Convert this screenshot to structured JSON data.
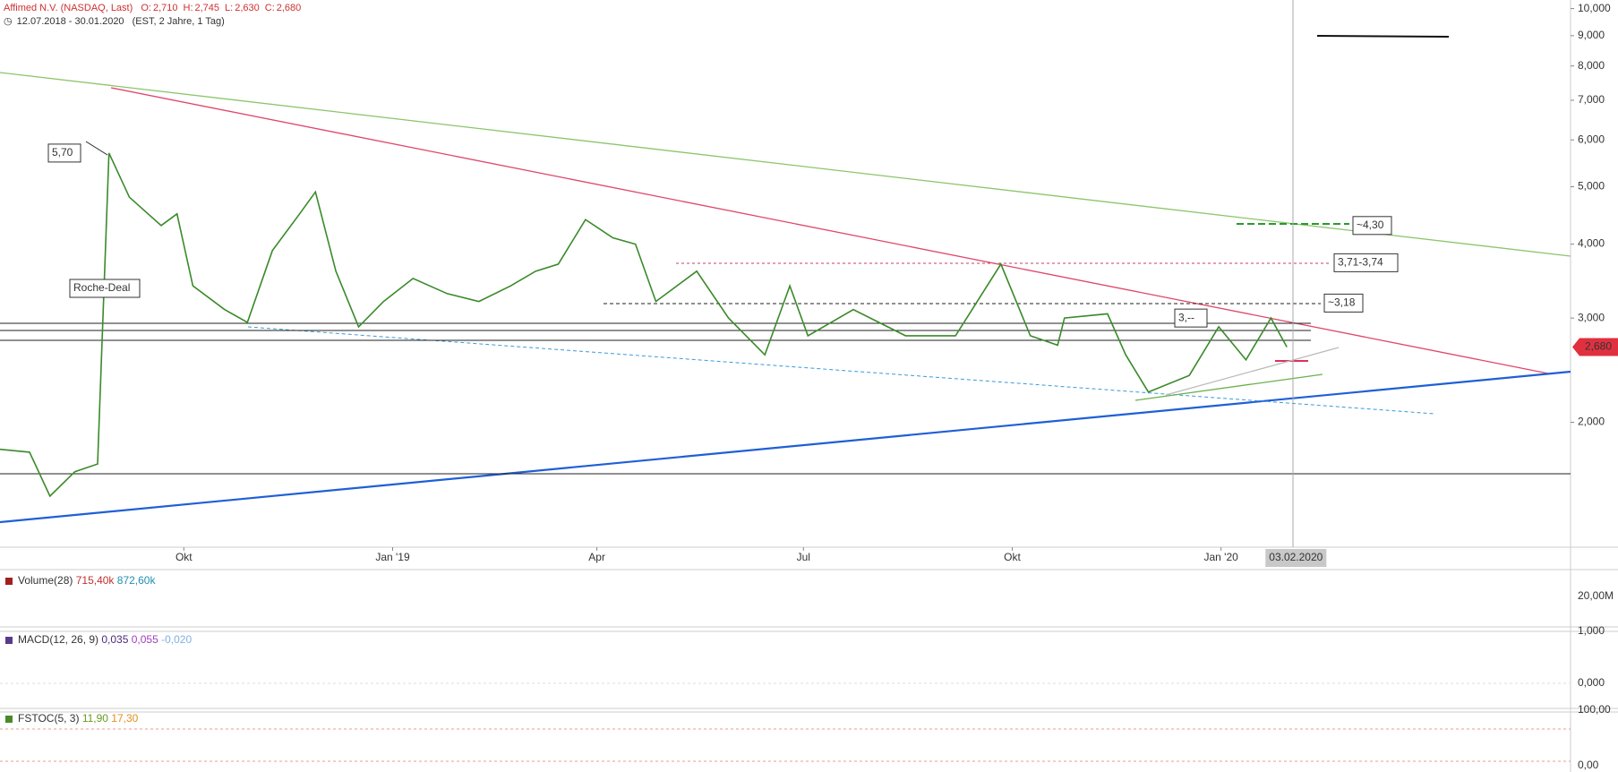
{
  "header": {
    "title": "Affimed N.V. (NASDAQ, Last)",
    "quote": [
      {
        "label": "O:",
        "value": "2,710"
      },
      {
        "label": "H:",
        "value": "2,745"
      },
      {
        "label": "L:",
        "value": "2,630"
      },
      {
        "label": "C:",
        "value": "2,680"
      }
    ],
    "range": "12.07.2018 - 30.01.2020",
    "settings": "(EST, 2 Jahre, 1 Tag)"
  },
  "chart_data": {
    "type": "line",
    "color": "#3a8a2a",
    "log_scale": true,
    "x": [
      "2018-07-12",
      "2018-07-25",
      "2018-08-03",
      "2018-08-14",
      "2018-08-24",
      "2018-08-29",
      "2018-09-07",
      "2018-09-21",
      "2018-09-28",
      "2018-10-05",
      "2018-10-19",
      "2018-10-29",
      "2018-11-09",
      "2018-11-21",
      "2018-11-28",
      "2018-12-07",
      "2018-12-17",
      "2018-12-28",
      "2019-01-10",
      "2019-01-25",
      "2019-02-08",
      "2019-02-22",
      "2019-03-05",
      "2019-03-15",
      "2019-03-27",
      "2019-04-08",
      "2019-04-18",
      "2019-04-27",
      "2019-05-15",
      "2019-05-29",
      "2019-06-14",
      "2019-06-25",
      "2019-07-03",
      "2019-07-23",
      "2019-08-15",
      "2019-09-06",
      "2019-09-26",
      "2019-10-09",
      "2019-10-21",
      "2019-10-24",
      "2019-11-12",
      "2019-11-20",
      "2019-11-30",
      "2019-12-18",
      "2019-12-31",
      "2020-01-12",
      "2020-01-23",
      "2020-01-30"
    ],
    "values": [
      1.8,
      1.78,
      1.5,
      1.65,
      1.7,
      5.7,
      4.8,
      4.3,
      4.5,
      3.4,
      3.1,
      2.95,
      3.9,
      4.5,
      4.9,
      3.6,
      2.9,
      3.2,
      3.5,
      3.3,
      3.2,
      3.4,
      3.6,
      3.7,
      4.4,
      4.1,
      4.0,
      3.2,
      3.6,
      3.0,
      2.6,
      3.4,
      2.8,
      3.1,
      2.8,
      2.8,
      3.7,
      2.8,
      2.7,
      3.0,
      3.05,
      2.6,
      2.25,
      2.4,
      2.9,
      2.55,
      3.0,
      2.68
    ],
    "xlim": [
      "2018-07-12",
      "2020-06-03"
    ],
    "xticks": [
      {
        "value": "2018-10-01",
        "label": "Okt"
      },
      {
        "value": "2019-01-01",
        "label": "Jan '19"
      },
      {
        "value": "2019-04-01",
        "label": "Apr"
      },
      {
        "value": "2019-07-01",
        "label": "Jul"
      },
      {
        "value": "2019-10-01",
        "label": "Okt"
      },
      {
        "value": "2020-01-01",
        "label": "Jan '20"
      }
    ],
    "crosshair": {
      "value": "2020-02-03",
      "label": "03.02.2020"
    },
    "ylim": [
      1.23,
      10.34
    ],
    "yticks": [
      {
        "value": 10,
        "label": "10,000"
      },
      {
        "value": 9,
        "label": "9,000"
      },
      {
        "value": 8,
        "label": "8,000"
      },
      {
        "value": 7,
        "label": "7,000"
      },
      {
        "value": 6,
        "label": "6,000"
      },
      {
        "value": 5,
        "label": "5,000"
      },
      {
        "value": 4,
        "label": "4,000"
      },
      {
        "value": 3,
        "label": "3,000"
      },
      {
        "value": 2,
        "label": "2,000"
      }
    ],
    "last_price": {
      "value": 2.68,
      "label": "2,680"
    },
    "annotations": [
      {
        "value": 5.7,
        "label": "5,70"
      },
      {
        "label": "Roche-Deal"
      },
      {
        "value": 3,
        "label": "3,--"
      },
      {
        "value": 4.3,
        "label": "~4,30"
      },
      {
        "value": 3.72,
        "label": "3,71-3,74"
      },
      {
        "value": 3.18,
        "label": "~3,18"
      }
    ]
  },
  "panels": [
    {
      "title": "Volume(28)",
      "values": [
        "715,40k",
        "872,60k"
      ],
      "ticks": [
        "20,00M"
      ]
    },
    {
      "title": "MACD(12, 26, 9)",
      "values": [
        "0,035",
        "0,055",
        "-0,020"
      ],
      "ticks": [
        "1,000",
        "0,000"
      ]
    },
    {
      "title": "FSTOC(5, 3)",
      "values": [
        "11,90",
        "17,30"
      ],
      "ticks": [
        "100,00",
        "0,00"
      ]
    }
  ]
}
